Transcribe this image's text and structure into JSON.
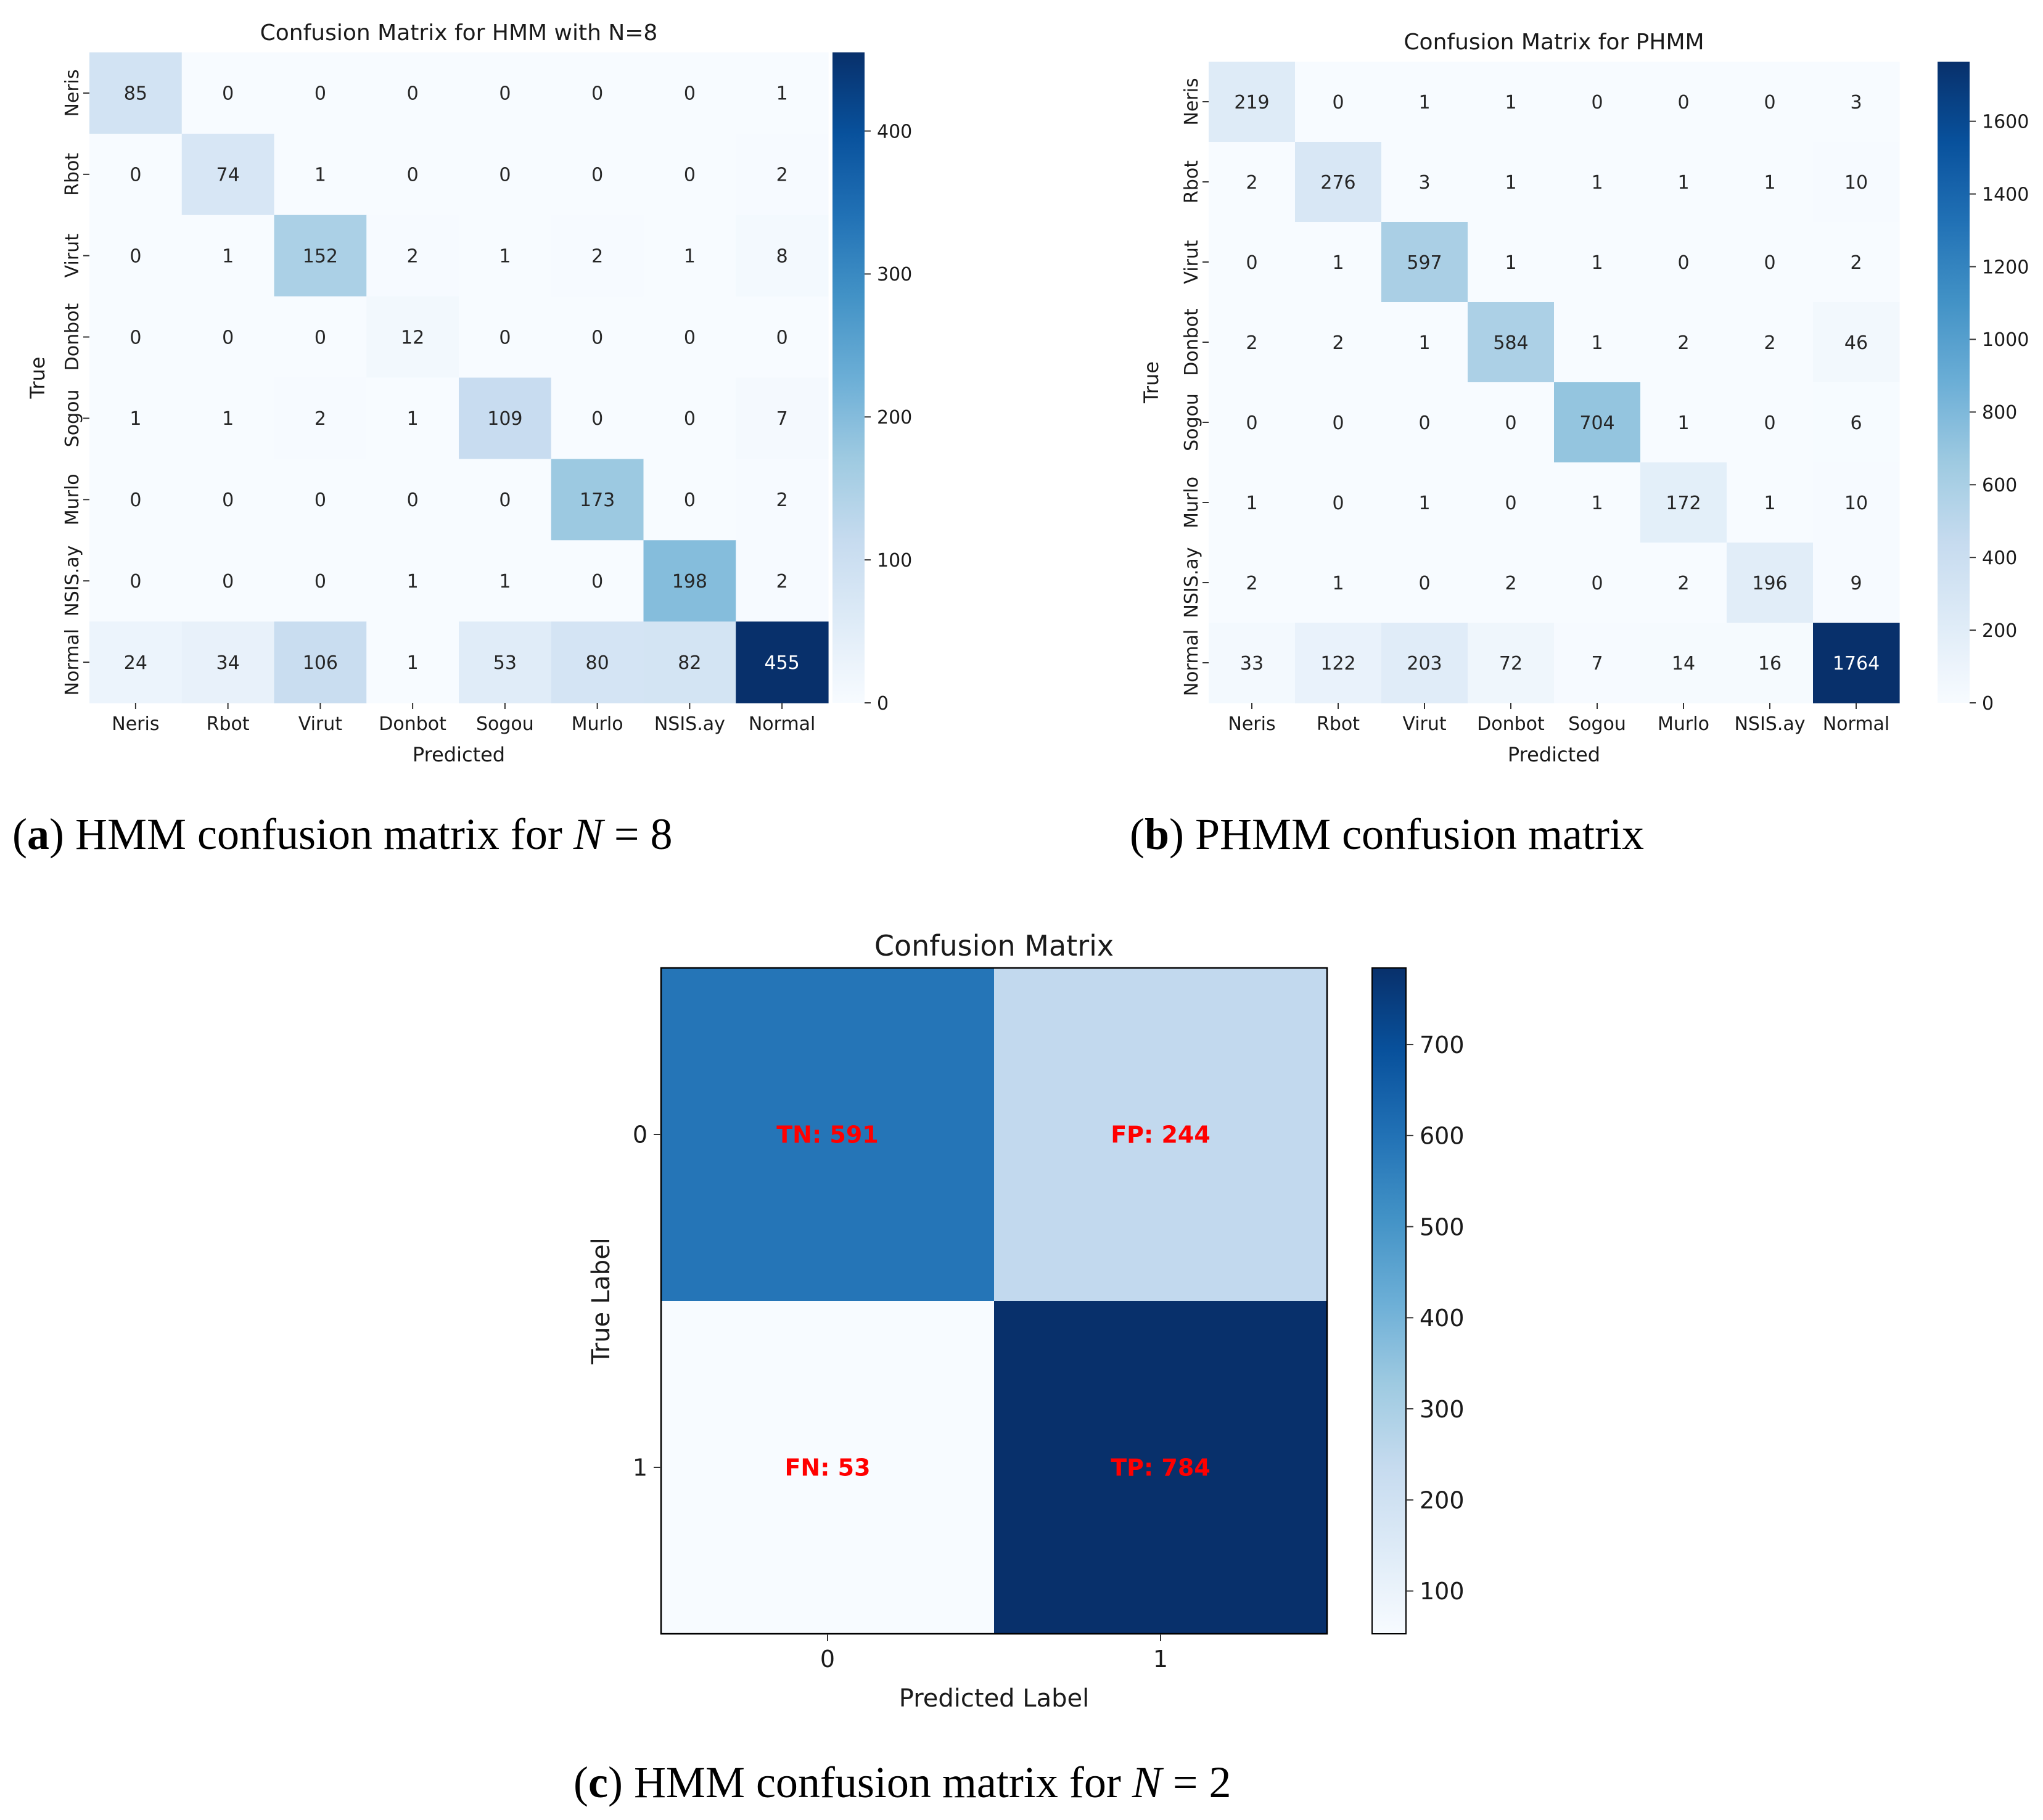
{
  "chart_data": [
    {
      "id": "a",
      "type": "heatmap",
      "title": "Confusion Matrix for HMM with N=8",
      "xlabel": "Predicted",
      "ylabel": "True",
      "x_categories": [
        "Neris",
        "Rbot",
        "Virut",
        "Donbot",
        "Sogou",
        "Murlo",
        "NSIS.ay",
        "Normal"
      ],
      "y_categories": [
        "Neris",
        "Rbot",
        "Virut",
        "Donbot",
        "Sogou",
        "Murlo",
        "NSIS.ay",
        "Normal"
      ],
      "values": [
        [
          85,
          0,
          0,
          0,
          0,
          0,
          0,
          1
        ],
        [
          0,
          74,
          1,
          0,
          0,
          0,
          0,
          2
        ],
        [
          0,
          1,
          152,
          2,
          1,
          2,
          1,
          8
        ],
        [
          0,
          0,
          0,
          12,
          0,
          0,
          0,
          0
        ],
        [
          1,
          1,
          2,
          1,
          109,
          0,
          0,
          7
        ],
        [
          0,
          0,
          0,
          0,
          0,
          173,
          0,
          2
        ],
        [
          0,
          0,
          0,
          1,
          1,
          0,
          198,
          2
        ],
        [
          24,
          34,
          106,
          1,
          53,
          80,
          82,
          455
        ]
      ],
      "colormap": "Blues",
      "color_range": [
        0,
        455
      ],
      "colorbar_ticks": [
        0,
        100,
        200,
        300,
        400
      ]
    },
    {
      "id": "b",
      "type": "heatmap",
      "title": "Confusion Matrix for PHMM",
      "xlabel": "Predicted",
      "ylabel": "True",
      "x_categories": [
        "Neris",
        "Rbot",
        "Virut",
        "Donbot",
        "Sogou",
        "Murlo",
        "NSIS.ay",
        "Normal"
      ],
      "y_categories": [
        "Neris",
        "Rbot",
        "Virut",
        "Donbot",
        "Sogou",
        "Murlo",
        "NSIS.ay",
        "Normal"
      ],
      "values": [
        [
          219,
          0,
          1,
          1,
          0,
          0,
          0,
          3
        ],
        [
          2,
          276,
          3,
          1,
          1,
          1,
          1,
          10
        ],
        [
          0,
          1,
          597,
          1,
          1,
          0,
          0,
          2
        ],
        [
          2,
          2,
          1,
          584,
          1,
          2,
          2,
          46
        ],
        [
          0,
          0,
          0,
          0,
          704,
          1,
          0,
          6
        ],
        [
          1,
          0,
          1,
          0,
          1,
          172,
          1,
          10
        ],
        [
          2,
          1,
          0,
          2,
          0,
          2,
          196,
          9
        ],
        [
          33,
          122,
          203,
          72,
          7,
          14,
          16,
          1764
        ]
      ],
      "colormap": "Blues",
      "color_range": [
        0,
        1764
      ],
      "colorbar_ticks": [
        0,
        200,
        400,
        600,
        800,
        1000,
        1200,
        1400,
        1600
      ]
    },
    {
      "id": "c",
      "type": "heatmap",
      "title": "Confusion Matrix",
      "xlabel": "Predicted Label",
      "ylabel": "True Label",
      "x_categories": [
        "0",
        "1"
      ],
      "y_categories": [
        "0",
        "1"
      ],
      "values": [
        [
          591,
          244
        ],
        [
          53,
          784
        ]
      ],
      "cell_labels": [
        [
          "TN: 591",
          "FP: 244"
        ],
        [
          "FN: 53",
          "TP: 784"
        ]
      ],
      "cell_label_color": "#ff0000",
      "colormap": "Blues",
      "color_range": [
        53,
        784
      ],
      "colorbar_ticks": [
        100,
        200,
        300,
        400,
        500,
        600,
        700
      ]
    }
  ],
  "captions": {
    "a": {
      "tag": "a",
      "text": "HMM confusion matrix for",
      "var": "N",
      "eq": "= 8"
    },
    "b": {
      "tag": "b",
      "text": "PHMM confusion matrix"
    },
    "c": {
      "tag": "c",
      "text": "HMM confusion matrix for",
      "var": "N",
      "eq": "= 2"
    }
  }
}
